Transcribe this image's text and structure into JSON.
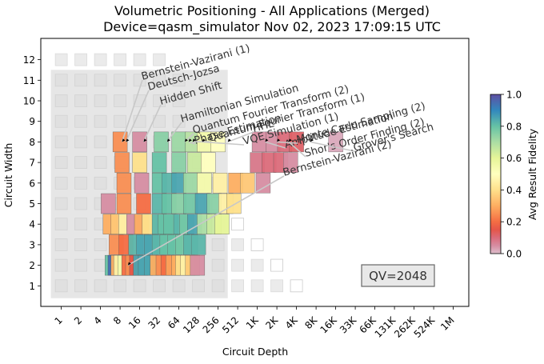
{
  "chart_data": {
    "type": "heatmap",
    "title": "Volumetric Positioning - All Applications (Merged)",
    "subtitle": "Device=qasm_simulator  Nov 02, 2023 17:09:15 UTC",
    "xlabel": "Circuit Depth",
    "ylabel": "Circuit Width",
    "x_ticks": [
      "1",
      "2",
      "4",
      "8",
      "16",
      "32",
      "64",
      "128",
      "256",
      "512",
      "1K",
      "2K",
      "4K",
      "8K",
      "16K",
      "33K",
      "66K",
      "131K",
      "262K",
      "524K",
      "1M"
    ],
    "x_scale": "log2",
    "y_ticks": [
      "1",
      "2",
      "3",
      "4",
      "5",
      "6",
      "7",
      "8",
      "9",
      "10",
      "11",
      "12"
    ],
    "y_range": [
      0,
      13
    ],
    "colorbar": {
      "label": "Avg Result Fidelity",
      "range": [
        0.0,
        1.0
      ],
      "ticks": [
        "0.0",
        "0.2",
        "0.4",
        "0.6",
        "0.8",
        "1.0"
      ],
      "colormap": "Spectral"
    },
    "qv_label": "QV=2048",
    "qv_region": {
      "log2_depth_max": 11,
      "width_max": 11
    },
    "background_grid": [
      {
        "width": 1,
        "max_depth_log2": 12
      },
      {
        "width": 2,
        "max_depth_log2": 11
      },
      {
        "width": 3,
        "max_depth_log2": 10
      },
      {
        "width": 4,
        "max_depth_log2": 9
      },
      {
        "width": 5,
        "max_depth_log2": 8
      },
      {
        "width": 6,
        "max_depth_log2": 8
      },
      {
        "width": 7,
        "max_depth_log2": 7
      },
      {
        "width": 8,
        "max_depth_log2": 7
      },
      {
        "width": 9,
        "max_depth_log2": 6
      },
      {
        "width": 10,
        "max_depth_log2": 6
      },
      {
        "width": 11,
        "max_depth_log2": 6
      },
      {
        "width": 12,
        "max_depth_log2": 5
      }
    ],
    "columns": [
      {
        "width": 2,
        "cells": [
          [
            2.6,
            0.8
          ],
          [
            2.75,
            0.95
          ],
          [
            2.9,
            0.3
          ],
          [
            3.05,
            0.45
          ],
          [
            3.25,
            0.55
          ],
          [
            3.45,
            0.2
          ],
          [
            3.65,
            0.25
          ],
          [
            3.85,
            0.15
          ],
          [
            4.05,
            0.85
          ],
          [
            4.3,
            0.85
          ],
          [
            4.6,
            0.85
          ],
          [
            4.9,
            0.3
          ],
          [
            5.2,
            0.25
          ],
          [
            5.45,
            0.2
          ],
          [
            5.7,
            0.28
          ],
          [
            6.0,
            0.3
          ],
          [
            6.2,
            0.4
          ],
          [
            6.45,
            0.45
          ],
          [
            6.7,
            0.35
          ],
          [
            6.95,
            0.05
          ]
        ]
      },
      {
        "width": 3,
        "cells": [
          [
            2.8,
            0.25
          ],
          [
            3.3,
            0.2
          ],
          [
            3.8,
            0.82
          ],
          [
            4.2,
            0.85
          ],
          [
            4.6,
            0.85
          ],
          [
            5.0,
            0.82
          ],
          [
            5.4,
            0.8
          ],
          [
            5.8,
            0.8
          ],
          [
            6.2,
            0.78
          ],
          [
            6.6,
            0.82
          ],
          [
            7.0,
            0.82
          ]
        ]
      },
      {
        "width": 4,
        "cells": [
          [
            2.5,
            0.3
          ],
          [
            2.9,
            0.35
          ],
          [
            3.3,
            0.45
          ],
          [
            3.7,
            0.05
          ],
          [
            4.1,
            0.3
          ],
          [
            4.5,
            0.4
          ],
          [
            5.0,
            0.82
          ],
          [
            5.3,
            0.8
          ],
          [
            5.6,
            0.8
          ],
          [
            6.1,
            0.82
          ],
          [
            6.4,
            0.78
          ],
          [
            6.8,
            0.85
          ],
          [
            7.3,
            0.7
          ],
          [
            7.8,
            0.65
          ],
          [
            8.2,
            0.6
          ]
        ]
      },
      {
        "width": 5,
        "cells": [
          [
            2.4,
            0.05
          ],
          [
            3.2,
            0.25
          ],
          [
            4.2,
            0.2
          ],
          [
            5.0,
            0.82
          ],
          [
            5.5,
            0.8
          ],
          [
            6.0,
            0.75
          ],
          [
            6.6,
            0.78
          ],
          [
            7.2,
            0.85
          ],
          [
            7.8,
            0.75
          ],
          [
            8.4,
            0.45
          ],
          [
            8.8,
            0.4
          ]
        ]
      },
      {
        "width": 6,
        "cells": [
          [
            3.2,
            0.25
          ],
          [
            4.1,
            0.05
          ],
          [
            5.0,
            0.8
          ],
          [
            5.5,
            0.82
          ],
          [
            6.0,
            0.85
          ],
          [
            6.6,
            0.72
          ],
          [
            7.3,
            0.55
          ],
          [
            8.1,
            0.45
          ],
          [
            8.9,
            0.3
          ],
          [
            9.5,
            0.35
          ],
          [
            10.3,
            0.05
          ]
        ]
      },
      {
        "width": 7,
        "cells": [
          [
            3.1,
            0.25
          ],
          [
            4.0,
            0.4
          ],
          [
            5.0,
            0.8
          ],
          [
            6.0,
            0.75
          ],
          [
            6.8,
            0.65
          ],
          [
            7.5,
            0.5
          ],
          [
            10.0,
            0.08
          ],
          [
            10.6,
            0.1
          ],
          [
            11.2,
            0.1
          ],
          [
            11.7,
            0.05
          ]
        ]
      },
      {
        "width": 8,
        "cells": [
          [
            3.0,
            0.25
          ],
          [
            4.0,
            0.05
          ],
          [
            5.1,
            0.75
          ],
          [
            6.0,
            0.72
          ],
          [
            6.7,
            0.68
          ],
          [
            7.3,
            0.55
          ],
          [
            8.0,
            0.5
          ],
          [
            10.1,
            0.05
          ],
          [
            10.8,
            0.05
          ],
          [
            11.4,
            0.1
          ],
          [
            12.0,
            0.12
          ],
          [
            14.0,
            0.02
          ]
        ]
      }
    ],
    "annotations": [
      {
        "text": "Bernstein-Vazirani (1)",
        "target": [
          3.1,
          8
        ]
      },
      {
        "text": "Deutsch-Jozsa",
        "target": [
          3.3,
          8
        ]
      },
      {
        "text": "Hidden Shift",
        "target": [
          4.2,
          8
        ]
      },
      {
        "text": "Hamiltonian Simulation",
        "target": [
          5.4,
          8
        ]
      },
      {
        "text": "Quantum Fourier Transform (2)",
        "target": [
          6.3,
          8
        ]
      },
      {
        "text": "Phase Estimation",
        "target": [
          6.5,
          8
        ]
      },
      {
        "text": "Quantum Fourier Transform (1)",
        "target": [
          6.7,
          8
        ]
      },
      {
        "text": "VQE Simulation (1)",
        "target": [
          7.2,
          8
        ]
      },
      {
        "text": "HHL",
        "target": [
          8.5,
          8
        ]
      },
      {
        "text": "Amplitude Estimation",
        "target": [
          10.4,
          8
        ]
      },
      {
        "text": "Monte Carlo Sampling (2)",
        "target": [
          11.0,
          8
        ]
      },
      {
        "text": "Shor's Order Finding (2)",
        "target": [
          11.6,
          8
        ]
      },
      {
        "text": "Grover's Search",
        "target": [
          12.7,
          8
        ]
      },
      {
        "text": "Bernstein-Vazirani (2)",
        "target": [
          3.4,
          2
        ]
      }
    ]
  }
}
